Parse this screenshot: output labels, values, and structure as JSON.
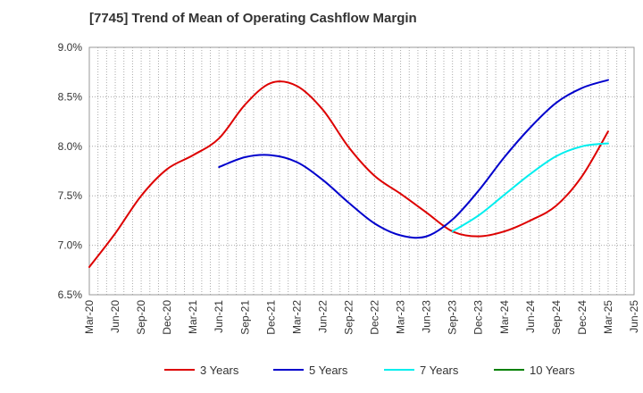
{
  "title": "[7745]  Trend of Mean of Operating Cashflow Margin",
  "chart_data": {
    "type": "line",
    "title": "[7745]  Trend of Mean of Operating Cashflow Margin",
    "xlabel": "",
    "ylabel": "",
    "x_tick_labels": [
      "Mar-20",
      "Jun-20",
      "Sep-20",
      "Dec-20",
      "Mar-21",
      "Jun-21",
      "Sep-21",
      "Dec-21",
      "Mar-22",
      "Jun-22",
      "Sep-22",
      "Dec-22",
      "Mar-23",
      "Jun-23",
      "Sep-23",
      "Dec-23",
      "Mar-24",
      "Jun-24",
      "Sep-24",
      "Dec-24",
      "Mar-25",
      "Jun-25"
    ],
    "y_tick_labels": [
      "9.0%",
      "8.5%",
      "8.0%",
      "7.5%",
      "7.0%",
      "6.5%"
    ],
    "ylim": [
      6.5,
      9.0
    ],
    "grid": true,
    "legend_position": "bottom",
    "series": [
      {
        "name": "3 Years",
        "color": "#dd0000",
        "x": [
          "Mar-20",
          "Jun-20",
          "Sep-20",
          "Dec-20",
          "Mar-21",
          "Jun-21",
          "Sep-21",
          "Dec-21",
          "Mar-22",
          "Jun-22",
          "Sep-22",
          "Dec-22",
          "Mar-23",
          "Jun-23",
          "Sep-23",
          "Dec-23",
          "Mar-24",
          "Jun-24",
          "Sep-24",
          "Dec-24",
          "Mar-25"
        ],
        "values": [
          6.78,
          7.12,
          7.5,
          7.77,
          7.91,
          8.08,
          8.42,
          8.64,
          8.61,
          8.37,
          7.99,
          7.7,
          7.52,
          7.33,
          7.14,
          7.09,
          7.14,
          7.25,
          7.4,
          7.7,
          8.15
        ]
      },
      {
        "name": "5 Years",
        "color": "#0000cc",
        "x": [
          "Jun-21",
          "Sep-21",
          "Dec-21",
          "Mar-22",
          "Jun-22",
          "Sep-22",
          "Dec-22",
          "Mar-23",
          "Jun-23",
          "Sep-23",
          "Dec-23",
          "Mar-24",
          "Jun-24",
          "Sep-24",
          "Dec-24",
          "Mar-25"
        ],
        "values": [
          7.79,
          7.89,
          7.91,
          7.84,
          7.66,
          7.43,
          7.22,
          7.1,
          7.09,
          7.26,
          7.55,
          7.89,
          8.19,
          8.44,
          8.59,
          8.67
        ]
      },
      {
        "name": "7 Years",
        "color": "#00eeee",
        "x": [
          "Sep-23",
          "Dec-23",
          "Mar-24",
          "Jun-24",
          "Sep-24",
          "Dec-24",
          "Mar-25"
        ],
        "values": [
          7.14,
          7.3,
          7.51,
          7.72,
          7.9,
          8.0,
          8.03
        ]
      },
      {
        "name": "10 Years",
        "color": "#008000",
        "x": [],
        "values": []
      }
    ]
  }
}
